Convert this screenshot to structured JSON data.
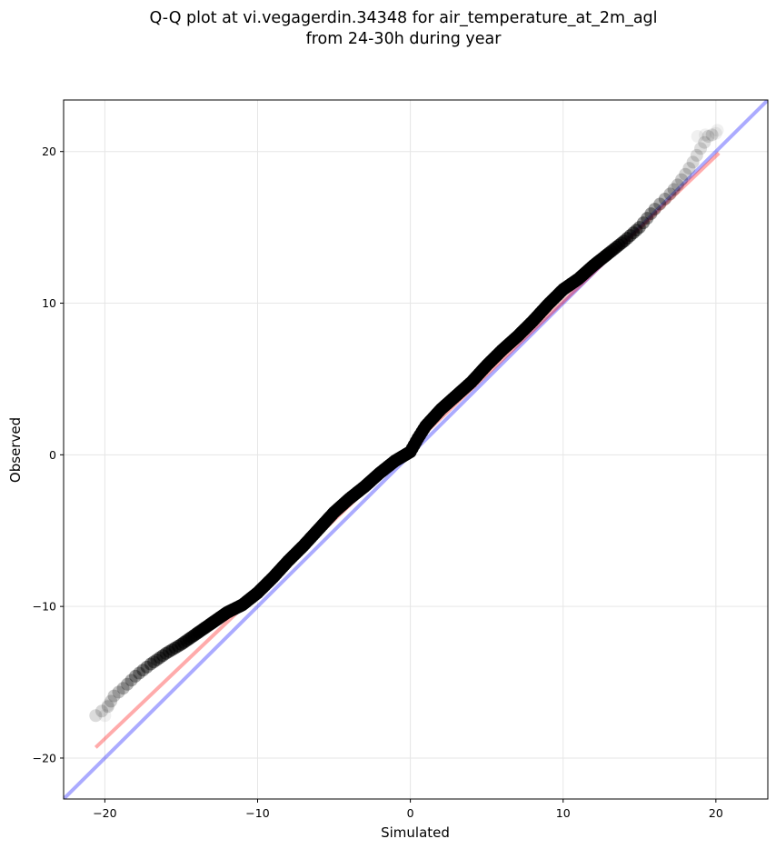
{
  "chart_data": {
    "type": "scatter",
    "title": "Q-Q plot at vi.vegagerdin.34348 for air_temperature_at_2m_agl",
    "subtitle": "from 24-30h during year",
    "xlabel": "Simulated",
    "ylabel": "Observed",
    "xlim": [
      -22.7,
      23.4
    ],
    "ylim": [
      -22.7,
      23.4
    ],
    "xticks": [
      -20,
      -10,
      0,
      10,
      20
    ],
    "yticks": [
      -20,
      -10,
      0,
      10,
      20
    ],
    "xtick_labels": [
      "−20",
      "−10",
      "0",
      "10",
      "20"
    ],
    "ytick_labels": [
      "−20",
      "−10",
      "0",
      "10",
      "20"
    ],
    "grid": true,
    "colors": {
      "points": "#000000",
      "fit_line": "#ff0000",
      "identity_line": "#0000ff",
      "grid": "#e6e6e6"
    },
    "quantile_curve": {
      "sim": [
        -20.6,
        -19.8,
        -19.4,
        -18.8,
        -18.0,
        -17.0,
        -16.0,
        -15.0,
        -14.0,
        -13.0,
        -12.0,
        -11.0,
        -10.0,
        -9.0,
        -8.0,
        -7.0,
        -6.0,
        -5.0,
        -4.0,
        -3.0,
        -2.0,
        -1.0,
        0.0,
        0.5,
        1.0,
        2.0,
        3.0,
        4.0,
        5.0,
        6.0,
        7.0,
        8.0,
        9.0,
        10.0,
        11.0,
        12.0,
        13.0,
        14.0,
        15.0,
        16.0,
        17.0,
        17.5,
        18.0,
        18.5,
        19.0,
        19.5,
        20.0
      ],
      "obs": [
        -17.2,
        -16.6,
        -15.9,
        -15.4,
        -14.6,
        -13.8,
        -13.1,
        -12.5,
        -11.8,
        -11.1,
        -10.4,
        -9.9,
        -9.1,
        -8.1,
        -7.0,
        -6.0,
        -4.9,
        -3.8,
        -2.9,
        -2.1,
        -1.2,
        -0.4,
        0.2,
        1.1,
        1.9,
        3.0,
        3.9,
        4.8,
        5.9,
        6.9,
        7.8,
        8.8,
        9.9,
        10.9,
        11.6,
        12.5,
        13.3,
        14.1,
        15.0,
        16.2,
        17.2,
        17.8,
        18.5,
        19.3,
        20.2,
        21.0,
        21.2
      ],
      "density": [
        0.08,
        0.12,
        0.16,
        0.22,
        0.32,
        0.42,
        0.52,
        0.62,
        0.78,
        0.92,
        1.0,
        1.0,
        1.0,
        1.0,
        1.0,
        1.0,
        1.0,
        1.0,
        1.0,
        1.0,
        1.0,
        1.0,
        1.0,
        1.0,
        1.0,
        1.0,
        1.0,
        1.0,
        1.0,
        1.0,
        1.0,
        1.0,
        1.0,
        1.0,
        1.0,
        0.95,
        0.8,
        0.62,
        0.45,
        0.32,
        0.22,
        0.16,
        0.12,
        0.09,
        0.07,
        0.06,
        0.05
      ]
    },
    "extra_points": [
      {
        "x": -20.0,
        "y": -17.2
      },
      {
        "x": -19.8,
        "y": -16.5
      },
      {
        "x": 18.8,
        "y": 21.0
      },
      {
        "x": 19.3,
        "y": 21.1
      },
      {
        "x": 20.1,
        "y": 21.4
      }
    ],
    "fit_line": {
      "x": [
        -20.6,
        20.2
      ],
      "y": [
        -19.3,
        19.9
      ]
    },
    "identity_line": {
      "x": [
        -22.7,
        23.4
      ],
      "y": [
        -22.7,
        23.4
      ]
    }
  }
}
